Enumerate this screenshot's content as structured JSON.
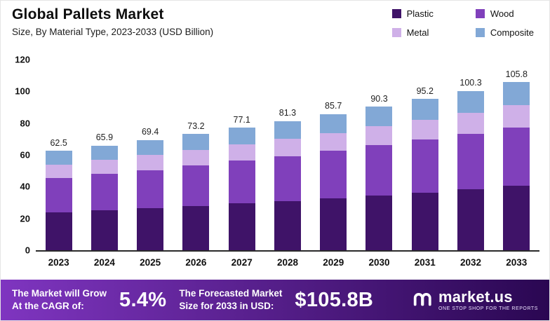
{
  "header": {
    "title": "Global Pallets Market",
    "subtitle": "Size, By Material Type, 2023-2033 (USD Billion)"
  },
  "banner": {
    "cagr_label_line1": "The Market will Grow",
    "cagr_label_line2": "At the CAGR of:",
    "cagr_value": "5.4%",
    "forecast_label_line1": "The Forecasted Market",
    "forecast_label_line2": "Size for 2033 in USD:",
    "forecast_value": "$105.8B",
    "logo_text": "market.us",
    "logo_tagline": "ONE STOP SHOP FOR THE REPORTS",
    "gradient_left": "#7f35c0",
    "gradient_right": "#2a0752"
  },
  "chart_data": {
    "type": "bar",
    "stacked": true,
    "title": "Global Pallets Market",
    "subtitle": "Size, By Material Type, 2023-2033 (USD Billion)",
    "categories": [
      "2023",
      "2024",
      "2025",
      "2026",
      "2027",
      "2028",
      "2029",
      "2030",
      "2031",
      "2032",
      "2033"
    ],
    "series": [
      {
        "name": "Plastic",
        "color": "#3f1368",
        "values": [
          24.0,
          25.2,
          26.5,
          28.0,
          29.5,
          31.0,
          32.7,
          34.5,
          36.4,
          38.3,
          40.5
        ]
      },
      {
        "name": "Wood",
        "color": "#8040bb",
        "values": [
          21.5,
          22.8,
          24.0,
          25.4,
          26.8,
          28.3,
          29.8,
          31.5,
          33.2,
          35.0,
          36.9
        ]
      },
      {
        "name": "Metal",
        "color": "#cfb0e8",
        "values": [
          8.5,
          9.0,
          9.4,
          9.8,
          10.3,
          10.8,
          11.4,
          12.0,
          12.6,
          13.3,
          14.0
        ]
      },
      {
        "name": "Composite",
        "color": "#82a8d6",
        "values": [
          8.5,
          8.9,
          9.5,
          10.0,
          10.5,
          11.2,
          11.8,
          12.3,
          13.0,
          13.7,
          14.4
        ]
      }
    ],
    "totals": [
      62.5,
      65.9,
      69.4,
      73.2,
      77.1,
      81.3,
      85.7,
      90.3,
      95.2,
      100.3,
      105.8
    ],
    "ylim": [
      0,
      120
    ],
    "yticks": [
      0,
      20,
      40,
      60,
      80,
      100,
      120
    ],
    "legend_position": "top-right",
    "grid": false
  }
}
